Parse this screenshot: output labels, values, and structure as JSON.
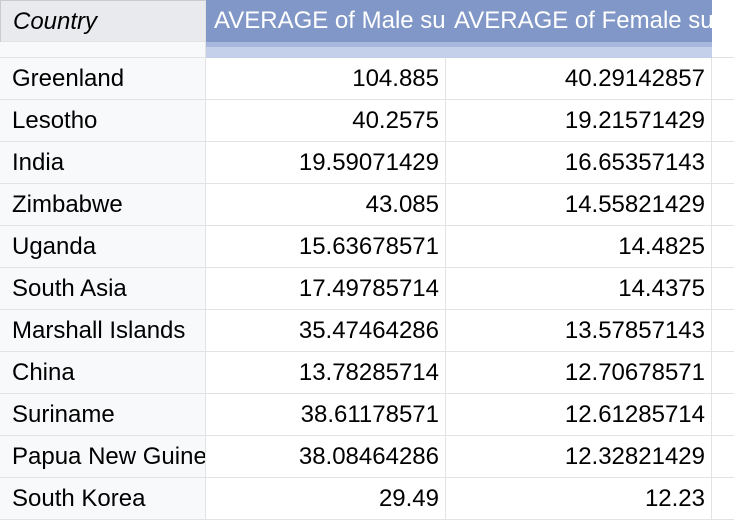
{
  "pivot_table": {
    "headers": {
      "country": "Country",
      "male": "AVERAGE of Male suicide rate",
      "female": "AVERAGE of Female suicide rate"
    },
    "rows": [
      {
        "country": "Greenland",
        "male": "104.885",
        "female": "40.29142857"
      },
      {
        "country": "Lesotho",
        "male": "40.2575",
        "female": "19.21571429"
      },
      {
        "country": "India",
        "male": "19.59071429",
        "female": "16.65357143"
      },
      {
        "country": "Zimbabwe",
        "male": "43.085",
        "female": "14.55821429"
      },
      {
        "country": "Uganda",
        "male": "15.63678571",
        "female": "14.4825"
      },
      {
        "country": "South Asia",
        "male": "17.49785714",
        "female": "14.4375"
      },
      {
        "country": "Marshall Islands",
        "male": "35.47464286",
        "female": "13.57857143"
      },
      {
        "country": "China",
        "male": "13.78285714",
        "female": "12.70678571"
      },
      {
        "country": "Suriname",
        "male": "38.61178571",
        "female": "12.61285714"
      },
      {
        "country": "Papua New Guinea",
        "male": "38.08464286",
        "female": "12.32821429"
      },
      {
        "country": "South Korea",
        "male": "29.49",
        "female": "12.23"
      }
    ]
  },
  "colors": {
    "header_fill": "#8097c7",
    "header_text": "#ffffff",
    "row_label_fill": "#f8f9fa",
    "gridline": "#e2e3e3"
  }
}
